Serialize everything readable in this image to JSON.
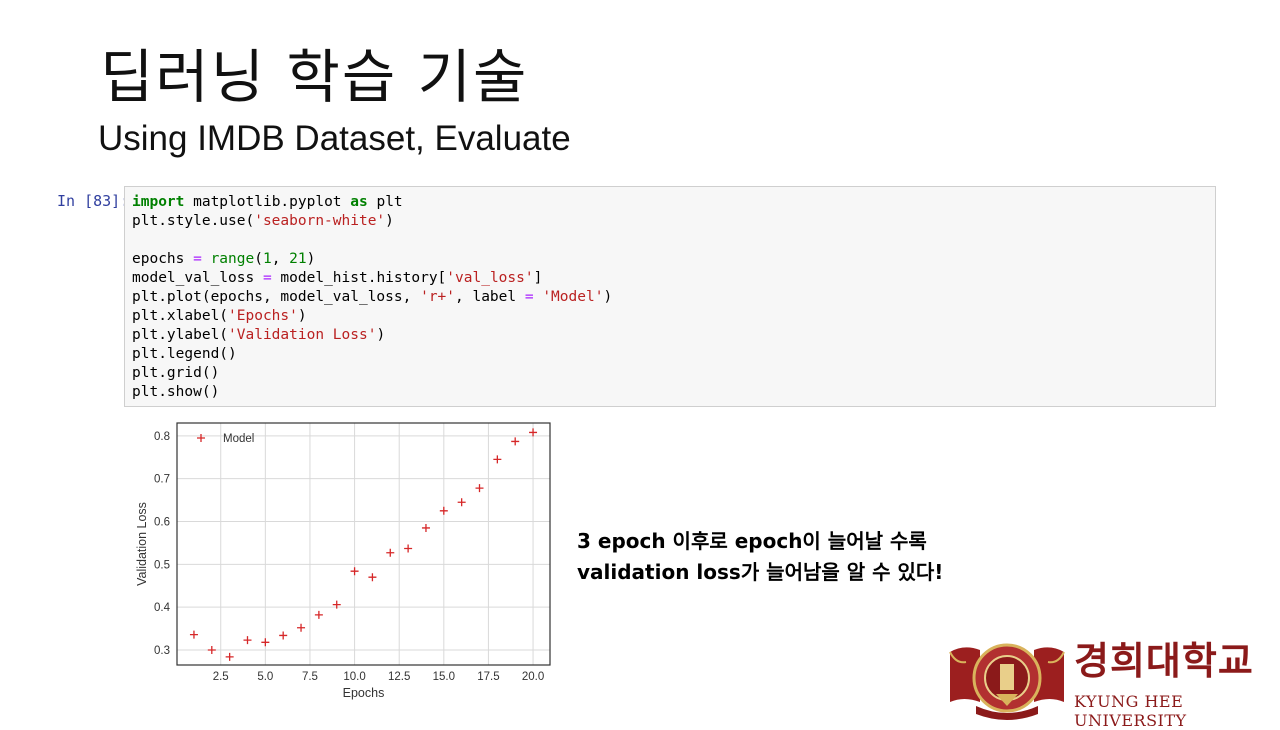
{
  "slide": {
    "title": "딥러닝 학습 기술",
    "subtitle": "Using IMDB Dataset, Evaluate",
    "note_line1": "3 epoch 이후로 epoch이 늘어날 수록",
    "note_line2": "validation loss가 늘어남을 알 수 있다!"
  },
  "notebook": {
    "prompt": "In [83]:",
    "code_lines": [
      "import matplotlib.pyplot as plt",
      "plt.style.use('seaborn-white')",
      "",
      "epochs = range(1, 21)",
      "model_val_loss = model_hist.history['val_loss']",
      "plt.plot(epochs, model_val_loss, 'r+', label = 'Model')",
      "plt.xlabel('Epochs')",
      "plt.ylabel('Validation Loss')",
      "plt.legend()",
      "plt.grid()",
      "plt.show()"
    ]
  },
  "chart_data": {
    "type": "scatter",
    "xlabel": "Epochs",
    "ylabel": "Validation Loss",
    "xlim": [
      0.05,
      20.95
    ],
    "ylim": [
      0.265,
      0.83
    ],
    "xticks": [
      "2.5",
      "5.0",
      "7.5",
      "10.0",
      "12.5",
      "15.0",
      "17.5",
      "20.0"
    ],
    "yticks": [
      "0.3",
      "0.4",
      "0.5",
      "0.6",
      "0.7",
      "0.8"
    ],
    "grid": true,
    "legend": "top-left",
    "color": "#d62728",
    "series": [
      {
        "name": "Model",
        "x": [
          1,
          2,
          3,
          4,
          5,
          6,
          7,
          8,
          9,
          10,
          11,
          12,
          13,
          14,
          15,
          16,
          17,
          18,
          19,
          20
        ],
        "y": [
          0.336,
          0.3,
          0.284,
          0.323,
          0.318,
          0.334,
          0.352,
          0.382,
          0.406,
          0.484,
          0.47,
          0.527,
          0.537,
          0.585,
          0.625,
          0.645,
          0.678,
          0.745,
          0.787,
          0.808
        ]
      }
    ]
  },
  "logo": {
    "name_ko": "경희대학교",
    "name_en": "KYUNG HEE UNIVERSITY",
    "primary_color": "#8b1a1a"
  }
}
